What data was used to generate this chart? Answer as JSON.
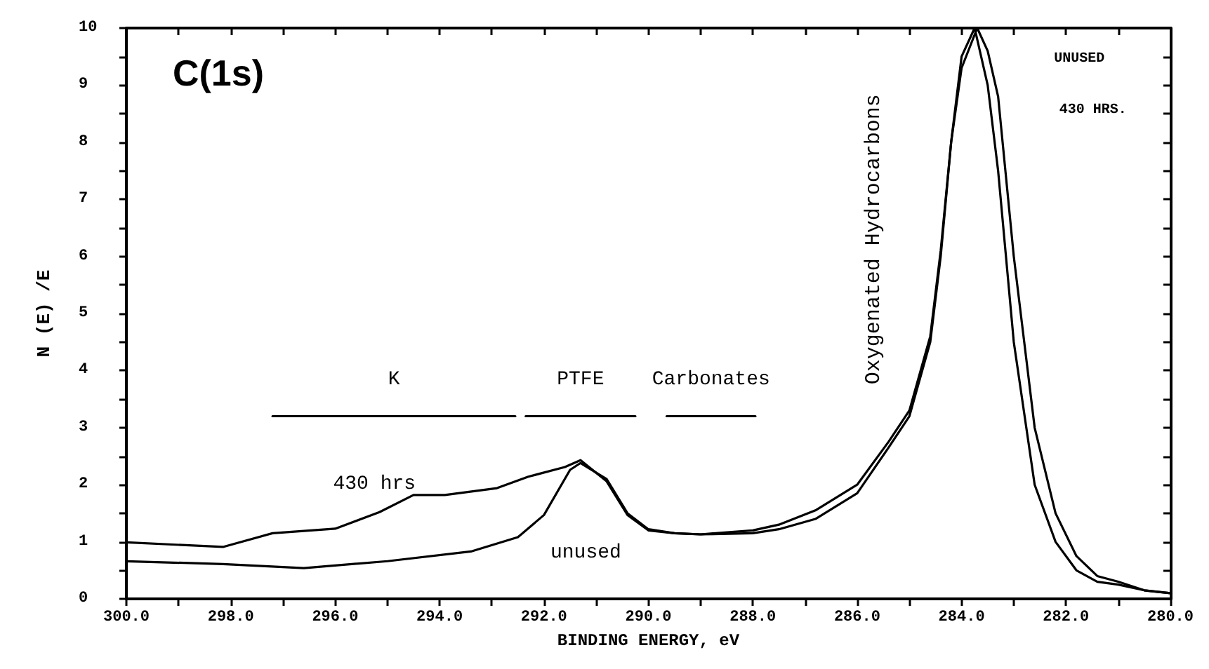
{
  "chart_data": {
    "type": "line",
    "title": "C(1s)",
    "xlabel": "BINDING ENERGY, eV",
    "ylabel": "N (E) /E",
    "xlim": [
      300,
      280
    ],
    "xticks": [
      {
        "value": 300,
        "label": "300.0"
      },
      {
        "value": 299,
        "label": null
      },
      {
        "value": 298,
        "label": "298.0"
      },
      {
        "value": 297,
        "label": null
      },
      {
        "value": 296,
        "label": "296.0"
      },
      {
        "value": 295,
        "label": null
      },
      {
        "value": 294,
        "label": "294.0"
      },
      {
        "value": 293,
        "label": null
      },
      {
        "value": 292,
        "label": "292.0"
      },
      {
        "value": 291,
        "label": null
      },
      {
        "value": 290,
        "label": "290.0"
      },
      {
        "value": 289,
        "label": null
      },
      {
        "value": 288,
        "label": "288.0"
      },
      {
        "value": 287,
        "label": null
      },
      {
        "value": 286,
        "label": "286.0"
      },
      {
        "value": 285,
        "label": null
      },
      {
        "value": 284,
        "label": "284.0"
      },
      {
        "value": 283,
        "label": null
      },
      {
        "value": 282,
        "label": "282.0"
      },
      {
        "value": 281,
        "label": null
      },
      {
        "value": 280,
        "label": "280.0"
      }
    ],
    "ylim": [
      0,
      10
    ],
    "yticks": [
      0,
      {
        "value": 0.5,
        "label": null
      },
      1,
      {
        "value": 1.5,
        "label": null
      },
      2,
      {
        "value": 2.5,
        "label": null
      },
      3,
      {
        "value": 3.5,
        "label": null
      },
      4,
      {
        "value": 4.5,
        "label": null
      },
      5,
      {
        "value": 5.5,
        "label": null
      },
      6,
      {
        "value": 6.5,
        "label": null
      },
      7,
      {
        "value": 7.5,
        "label": null
      },
      8,
      {
        "value": 8.5,
        "label": null
      },
      9,
      {
        "value": 9.5,
        "label": null
      },
      10
    ],
    "grid": false,
    "legend": false,
    "marker": "none",
    "line_style": "solid",
    "series": [
      {
        "color": "#000000",
        "x": [
          300,
          298.15,
          297.2,
          296.0,
          295.15,
          294.5,
          293.9,
          292.9,
          292.3,
          291.6,
          291.3,
          290.8,
          290.4,
          290.0,
          289.5,
          289.0,
          288.0,
          287.5,
          286.8,
          286.0,
          285.4,
          285.0,
          284.6,
          284.4,
          284.2,
          284.0,
          283.7,
          283.5,
          283.3,
          283.0,
          282.6,
          282.2,
          281.8,
          281.4,
          281.0,
          280.5,
          280.0
        ],
        "values": [
          0.99,
          0.91,
          1.15,
          1.23,
          1.52,
          1.82,
          1.82,
          1.94,
          2.14,
          2.31,
          2.43,
          2.06,
          1.47,
          1.2,
          1.15,
          1.13,
          1.2,
          1.3,
          1.55,
          2.0,
          2.75,
          3.3,
          4.6,
          6.1,
          8.0,
          9.3,
          10.0,
          9.6,
          8.8,
          6.0,
          3.0,
          1.5,
          0.75,
          0.4,
          0.3,
          0.15,
          0.1
        ]
      },
      {
        "color": "#000000",
        "x": [
          300,
          298.15,
          296.6,
          295.0,
          293.4,
          292.5,
          292.0,
          291.5,
          291.3,
          290.8,
          290.4,
          290.0,
          289.5,
          289.0,
          288.0,
          287.5,
          286.8,
          286.0,
          285.4,
          285.0,
          284.6,
          284.4,
          284.2,
          284.0,
          283.75,
          283.5,
          283.3,
          283.0,
          282.6,
          282.2,
          281.8,
          281.4,
          281.0,
          280.5,
          280.0
        ],
        "values": [
          0.66,
          0.61,
          0.54,
          0.66,
          0.83,
          1.08,
          1.47,
          2.26,
          2.38,
          2.1,
          1.5,
          1.22,
          1.15,
          1.13,
          1.15,
          1.22,
          1.4,
          1.85,
          2.65,
          3.2,
          4.5,
          6.0,
          8.0,
          9.5,
          10.0,
          9.0,
          7.5,
          4.5,
          2.0,
          1.0,
          0.5,
          0.3,
          0.25,
          0.15,
          0.1
        ]
      },
      {
        "name": "K",
        "color": "#000000",
        "x": [
          297.2,
          292.55
        ],
        "values": [
          3.2,
          3.2
        ]
      },
      {
        "name": "PTFE",
        "color": "#000000",
        "x": [
          292.35,
          290.25
        ],
        "values": [
          3.2,
          3.2
        ]
      },
      {
        "name": "Carbonates",
        "color": "#000000",
        "x": [
          289.65,
          287.95
        ],
        "values": [
          3.2,
          3.2
        ]
      }
    ],
    "annotations": [
      "430 hrs",
      "unused",
      "UNUSED",
      "430 HRS.",
      "Oxygenated Hydrocarbons"
    ]
  }
}
